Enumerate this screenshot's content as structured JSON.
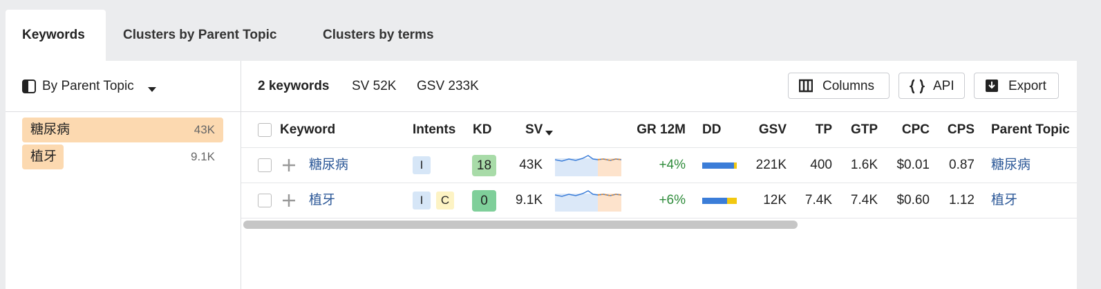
{
  "tabs": [
    "Keywords",
    "Clusters by Parent Topic",
    "Clusters by terms"
  ],
  "sidebar": {
    "group_by": "By Parent Topic",
    "topics": [
      {
        "name": "糖尿病",
        "volume": "43K"
      },
      {
        "name": "植牙",
        "volume": "9.1K"
      }
    ]
  },
  "toolbar": {
    "count": "2 keywords",
    "sv": "SV 52K",
    "gsv": "GSV 233K",
    "buttons": [
      "Columns",
      "API",
      "Export"
    ]
  },
  "table": {
    "headers": [
      "Keyword",
      "Intents",
      "KD",
      "SV",
      "GR 12M",
      "DD",
      "GSV",
      "TP",
      "GTP",
      "CPC",
      "CPS",
      "Parent Topic"
    ],
    "rows": [
      {
        "keyword": "糖尿病",
        "intents": [
          "I"
        ],
        "kd": 18,
        "sv": "43K",
        "gr": "+4%",
        "gsv": "221K",
        "tp": "400",
        "gtp": "1.6K",
        "cpc": "$0.01",
        "cps": "0.87",
        "parent_topic": "糖尿病"
      },
      {
        "keyword": "植牙",
        "intents": [
          "I",
          "C"
        ],
        "kd": 0,
        "sv": "9.1K",
        "gr": "+6%",
        "gsv": "12K",
        "tp": "7.4K",
        "gtp": "7.4K",
        "cpc": "$0.60",
        "cps": "1.12",
        "parent_topic": "植牙"
      }
    ]
  }
}
